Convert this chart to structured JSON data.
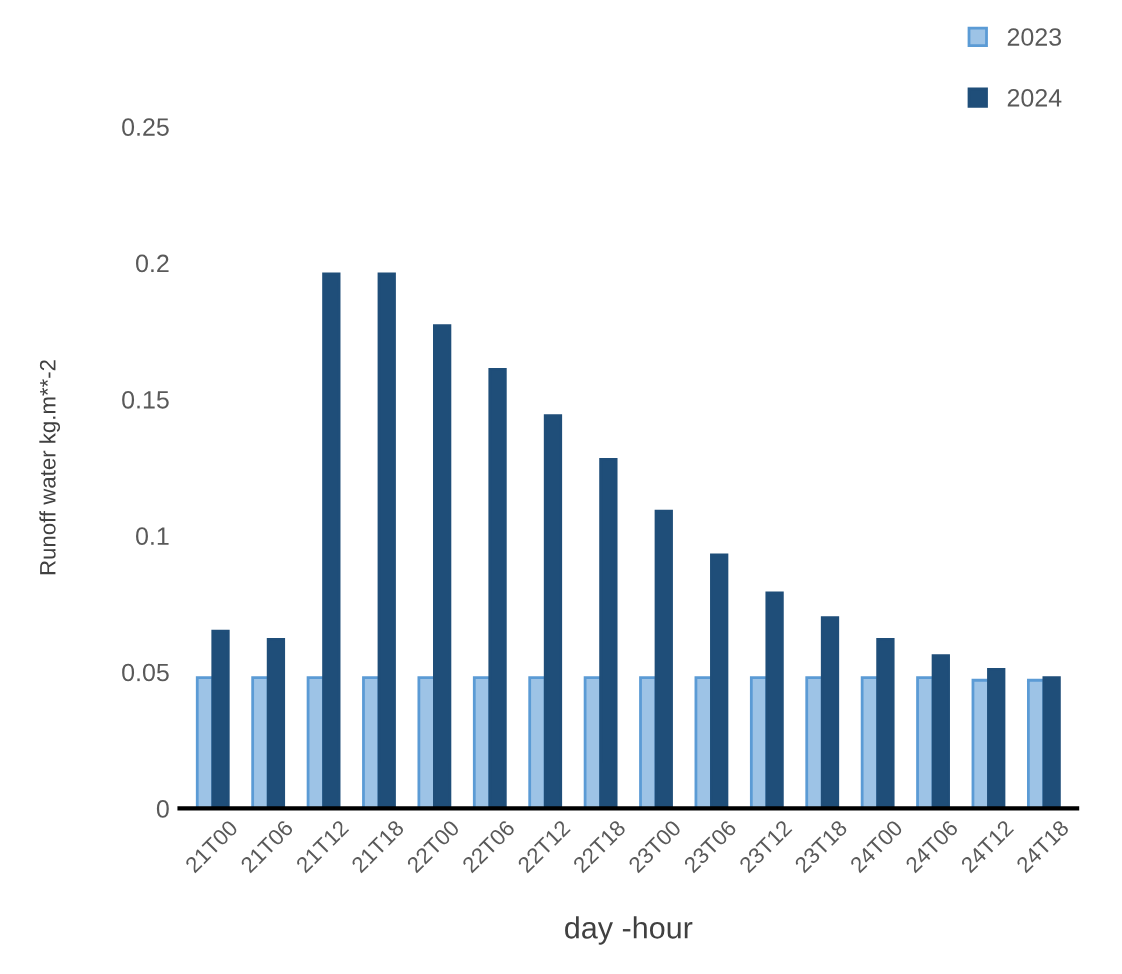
{
  "chart_data": {
    "type": "bar",
    "xlabel": "day -hour",
    "ylabel": "Runoff water kg.m**-2",
    "categories": [
      "21T00",
      "21T06",
      "21T12",
      "21T18",
      "22T00",
      "22T06",
      "22T12",
      "22T18",
      "23T00",
      "23T06",
      "23T12",
      "23T18",
      "24T00",
      "24T06",
      "24T12",
      "24T18"
    ],
    "series": [
      {
        "name": "2023",
        "color": "#9dc3e6",
        "values": [
          0.048,
          0.048,
          0.048,
          0.048,
          0.048,
          0.048,
          0.048,
          0.048,
          0.048,
          0.048,
          0.048,
          0.048,
          0.048,
          0.048,
          0.047,
          0.047
        ]
      },
      {
        "name": "2024",
        "color": "#1f4e79",
        "values": [
          0.065,
          0.062,
          0.196,
          0.196,
          0.177,
          0.161,
          0.144,
          0.128,
          0.109,
          0.093,
          0.079,
          0.07,
          0.062,
          0.056,
          0.051,
          0.048
        ]
      }
    ],
    "ylim": [
      0,
      0.25
    ],
    "yticks": [
      0,
      0.05,
      0.1,
      0.15,
      0.2,
      0.25
    ],
    "grid": false,
    "legend": "top right"
  }
}
